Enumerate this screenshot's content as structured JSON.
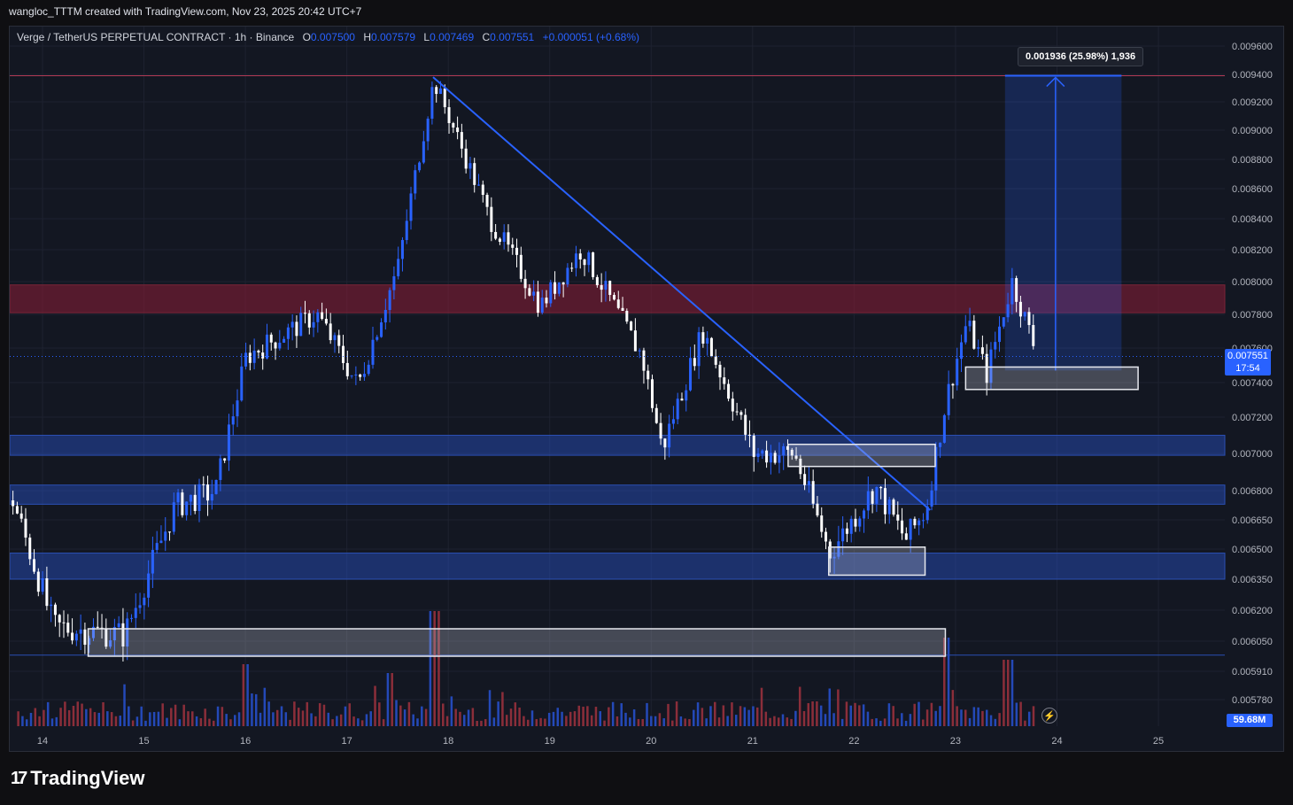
{
  "header": {
    "caption": "wangloc_TTTM created with TradingView.com, Nov 23, 2025 20:42 UTC+7"
  },
  "legend": {
    "symbol": "Verge / TetherUS PERPETUAL CONTRACT · 1h · Binance",
    "o_label": "O",
    "o_value": "0.007500",
    "h_label": "H",
    "h_value": "0.007579",
    "l_label": "L",
    "l_value": "0.007469",
    "c_label": "C",
    "c_value": "0.007551",
    "change": "+0.000051 (+0.68%)"
  },
  "measure_label": "0.001936 (25.98%) 1,936",
  "last_price": {
    "value": "0.007551",
    "countdown": "17:54"
  },
  "volume_label": "59.68M",
  "brand": {
    "logo": "17",
    "name": "TradingView"
  },
  "colors": {
    "background": "#131722",
    "up": "#2962ff",
    "down": "#ffffff",
    "resistance_zone": "#5b1d2e",
    "support_zone": "#1c3373",
    "accent": "#2962ff"
  },
  "chart_data": {
    "type": "candlestick",
    "symbol": "Verge / TetherUS PERPETUAL CONTRACT",
    "timeframe": "1h",
    "exchange": "Binance",
    "x_ticks": [
      "14",
      "15",
      "16",
      "17",
      "18",
      "19",
      "20",
      "21",
      "22",
      "23",
      "24",
      "25"
    ],
    "y_ticks": [
      "0.009600",
      "0.009400",
      "0.009200",
      "0.009000",
      "0.008800",
      "0.008600",
      "0.008400",
      "0.008200",
      "0.008000",
      "0.007800",
      "0.007600",
      "0.007400",
      "0.007200",
      "0.007000",
      "0.006800",
      "0.006650",
      "0.006500",
      "0.006350",
      "0.006200",
      "0.006050",
      "0.005910",
      "0.005780"
    ],
    "price_path": [
      {
        "day": 13.7,
        "price": 0.00675
      },
      {
        "day": 14.1,
        "price": 0.00612
      },
      {
        "day": 14.8,
        "price": 0.00608
      },
      {
        "day": 15.3,
        "price": 0.00672
      },
      {
        "day": 15.7,
        "price": 0.0068
      },
      {
        "day": 16.0,
        "price": 0.00755
      },
      {
        "day": 16.7,
        "price": 0.0078
      },
      {
        "day": 17.1,
        "price": 0.00738
      },
      {
        "day": 17.5,
        "price": 0.0081
      },
      {
        "day": 17.85,
        "price": 0.00935
      },
      {
        "day": 18.4,
        "price": 0.0084
      },
      {
        "day": 18.9,
        "price": 0.00785
      },
      {
        "day": 19.3,
        "price": 0.0082
      },
      {
        "day": 19.9,
        "price": 0.00755
      },
      {
        "day": 20.1,
        "price": 0.00702
      },
      {
        "day": 20.5,
        "price": 0.0077
      },
      {
        "day": 21.0,
        "price": 0.007
      },
      {
        "day": 21.4,
        "price": 0.007
      },
      {
        "day": 21.75,
        "price": 0.00648
      },
      {
        "day": 22.2,
        "price": 0.00682
      },
      {
        "day": 22.5,
        "price": 0.00655
      },
      {
        "day": 22.7,
        "price": 0.0067
      },
      {
        "day": 22.9,
        "price": 0.0073
      },
      {
        "day": 23.1,
        "price": 0.00775
      },
      {
        "day": 23.3,
        "price": 0.00745
      },
      {
        "day": 23.55,
        "price": 0.008
      },
      {
        "day": 23.8,
        "price": 0.007551
      }
    ],
    "zones": [
      {
        "kind": "resistance",
        "low": 0.00781,
        "high": 0.00798
      },
      {
        "kind": "support",
        "low": 0.00699,
        "high": 0.0071
      },
      {
        "kind": "support",
        "low": 0.00673,
        "high": 0.00683
      },
      {
        "kind": "support",
        "low": 0.00635,
        "high": 0.00648
      }
    ],
    "boxes": [
      {
        "from": 14.45,
        "to": 22.9,
        "low": 0.00598,
        "high": 0.00611
      },
      {
        "from": 21.35,
        "to": 22.8,
        "low": 0.00693,
        "high": 0.00705
      },
      {
        "from": 21.75,
        "to": 22.7,
        "low": 0.00637,
        "high": 0.00651
      },
      {
        "from": 23.1,
        "to": 24.8,
        "low": 0.00736,
        "high": 0.00749
      }
    ],
    "trendline": {
      "from_day": 17.85,
      "from_price": 0.00938,
      "to_day": 22.75,
      "to_price": 0.0067
    },
    "measure": {
      "from_day": 23.75,
      "to_day": 24.75,
      "from_price": 0.00747,
      "to_price": 0.00939
    },
    "top_line_price": 0.00939,
    "last_price": 0.007551,
    "volume_last": "59.68M"
  }
}
